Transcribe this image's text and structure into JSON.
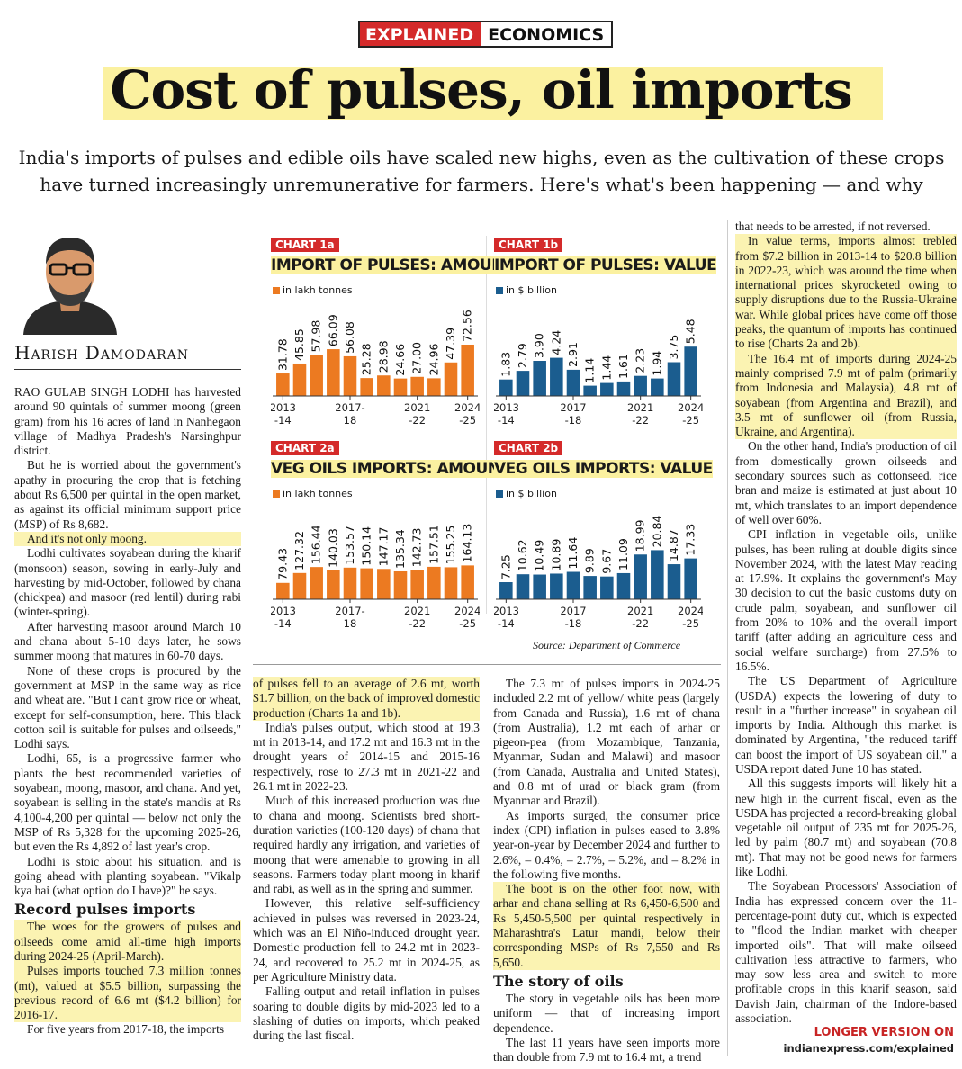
{
  "header": {
    "tag_explained": "EXPLAINED",
    "tag_section": "ECONOMICS",
    "headline": "Cost of pulses, oil imports",
    "standfirst": "India's imports of pulses and edible oils have scaled new highs, even as the cultivation of these crops have turned increasingly unremunerative for farmers. Here's what's been happening — and why"
  },
  "author": {
    "name": "Harish Damodaran",
    "avatar_icon": "author-portrait-icon"
  },
  "colors": {
    "accent_red": "#d42a2a",
    "orange_bar": "#ec7a21",
    "blue_bar": "#1b5d8f",
    "highlight": "#fbf1a0"
  },
  "col1": {
    "p1": "RAO GULAB SINGH LODHI has harvested around 90 quintals of summer moong (green gram) from his 16 acres of land in Nanhegaon village of Madhya Pradesh's Narsinghpur district.",
    "p2": "But he is worried about the government's apathy in procuring the crop that is fetching about Rs 6,500 per quintal in the open market, as against its official minimum support price (MSP) of Rs 8,682.",
    "p3": "And it's not only moong.",
    "p4": "Lodhi cultivates soyabean during the kharif (monsoon) season, sowing in early-July and harvesting by mid-October, followed by chana (chickpea) and masoor (red lentil) during rabi (winter-spring).",
    "p5": "After harvesting masoor around March 10 and chana about 5-10 days later, he sows summer moong that matures in 60-70 days.",
    "p6": "None of these crops is procured by the government at MSP in the same way as rice and wheat are. \"But I can't grow rice or wheat, except for self-consumption, here. This black cotton soil is suitable for pulses and oilseeds,\" Lodhi says.",
    "p7": "Lodhi, 65, is a progressive farmer who plants the best recommended varieties of soyabean, moong, masoor, and chana. And yet, soyabean is selling in the state's mandis at Rs 4,100-4,200 per quintal — below not only the MSP of Rs 5,328 for the upcoming 2025-26, but even the Rs 4,892 of last year's crop.",
    "p8": "Lodhi is stoic about his situation, and is going ahead with planting soyabean. \"Vikalp kya hai (what option do I have)?\" he says.",
    "h_record": "Record pulses imports",
    "p9": "The woes for the growers of pulses and oilseeds come amid all-time high imports during 2024-25 (April-March).",
    "p10": "Pulses imports touched 7.3 million tonnes (mt), valued at $5.5 billion, surpassing the previous record of 6.6 mt ($4.2 billion) for 2016-17.",
    "p11": "For five years from 2017-18, the imports"
  },
  "col2": {
    "p1": "of pulses fell to an average of 2.6 mt, worth $1.7 billion, on the back of improved domestic production (Charts 1a and 1b).",
    "p2": "India's pulses output, which stood at 19.3 mt in 2013-14, and 17.2 mt and 16.3 mt in the drought years of 2014-15 and 2015-16 respectively, rose to 27.3 mt in 2021-22 and 26.1 mt in 2022-23.",
    "p3": "Much of this increased production was due to chana and moong. Scientists bred short-duration varieties (100-120 days) of chana that required hardly any irrigation, and varieties of moong that were amenable to growing in all seasons. Farmers today plant moong in kharif and rabi, as well as in the spring and summer.",
    "p4": "However, this relative self-sufficiency achieved in pulses was reversed in 2023-24, which was an El Niño-induced drought year. Domestic production fell to 24.2 mt in 2023-24, and recovered to 25.2 mt in 2024-25, as per Agriculture Ministry data.",
    "p5": "Falling output and retail inflation in pulses soaring to double digits by mid-2023 led to a slashing of duties on imports, which peaked during the last fiscal."
  },
  "col3": {
    "p1": "The 7.3 mt of pulses imports in 2024-25 included 2.2 mt of yellow/ white peas (largely from Canada and Russia), 1.6 mt of chana (from Australia), 1.2 mt each of arhar or pigeon-pea (from Mozambique, Tanzania, Myanmar, Sudan and Malawi) and masoor (from Canada, Australia and United States), and 0.8 mt of urad or black gram (from Myanmar and Brazil).",
    "p2": "As imports surged, the consumer price index (CPI) inflation in pulses eased to 3.8% year-on-year by December 2024 and further to 2.6%, – 0.4%, – 2.7%, – 5.2%, and – 8.2% in the following five months.",
    "p3": "The boot is on the other foot now, with arhar and chana selling at Rs 6,450-6,500 and Rs 5,450-5,500 per quintal respectively in Maharashtra's Latur mandi, below their corresponding MSPs of Rs 7,550 and Rs 5,650.",
    "h_oils": "The story of oils",
    "p4": "The story in vegetable oils has been more uniform — that of increasing import dependence.",
    "p5": "The last 11 years have seen imports more than double from 7.9 mt to 16.4 mt, a trend"
  },
  "col4": {
    "p0": "that needs to be arrested, if not reversed.",
    "p1": "In value terms, imports almost trebled from $7.2 billion in 2013-14 to $20.8 billion in 2022-23, which was around the time when international prices skyrocketed owing to supply disruptions due to the Russia-Ukraine war. While global prices have come off those peaks, the quantum of imports has continued to rise (Charts 2a and 2b).",
    "p2": "The 16.4 mt of imports during 2024-25 mainly comprised 7.9 mt of palm (primarily from Indonesia and Malaysia), 4.8 mt of soyabean (from Argentina and Brazil), and 3.5 mt of sunflower oil (from Russia, Ukraine, and Argentina).",
    "p3": "On the other hand, India's production of oil from domestically grown oilseeds and secondary sources such as cottonseed, rice bran and maize is estimated at just about 10 mt, which translates to an import dependence of well over 60%.",
    "p4": "CPI inflation in vegetable oils, unlike pulses, has been ruling at double digits since November 2024, with the latest May reading at 17.9%. It explains the government's May 30 decision to cut the basic customs duty on crude palm, soyabean, and sunflower oil from 20% to 10% and the overall import tariff (after adding an agriculture cess and social welfare surcharge) from 27.5% to 16.5%.",
    "p5": "The US Department of Agriculture (USDA) expects the lowering of duty to result in a \"further increase\" in soyabean oil imports by India. Although this market is dominated by Argentina, \"the reduced tariff can boost the import of US soyabean oil,\" a USDA report dated June 10 has stated.",
    "p6": "All this suggests imports will likely hit a new high in the current fiscal, even as the USDA has projected a record-breaking global vegetable oil output of 235 mt for 2025-26, led by palm (80.7 mt) and soyabean (70.8 mt). That may not be good news for farmers like Lodhi.",
    "p7": "The Soyabean Processors' Association of India has expressed concern over the 11-percentage-point duty cut, which is expected to \"flood the Indian market with cheaper imported oils\". That will make oilseed cultivation less attractive to farmers, who may sow less area and switch to more profitable crops in this kharif season, said Davish Jain, chairman of the Indore-based association."
  },
  "chart_data": [
    {
      "type": "bar",
      "tag": "CHART 1a",
      "title": "IMPORT OF PULSES: AMOUNT",
      "legend": "in lakh tonnes",
      "color": "#ec7a21",
      "categories": [
        "2013-14",
        "2014-15",
        "2015-16",
        "2016-17",
        "2017-18",
        "2018-19",
        "2019-20",
        "2020-21",
        "2021-22",
        "2022-23",
        "2023-24",
        "2024-25"
      ],
      "values": [
        31.78,
        45.85,
        57.98,
        66.09,
        56.08,
        25.28,
        28.98,
        24.66,
        27.0,
        24.96,
        47.39,
        72.56
      ],
      "value_labels": [
        "31.78",
        "45.85",
        "57.98",
        "66.09",
        "56.08",
        "25.28",
        "28.98",
        "24.66",
        "27.00",
        "24.96",
        "47.39",
        "72.56"
      ],
      "tick_labels": [
        {
          "i": 0,
          "l1": "2013",
          "l2": "-14"
        },
        {
          "i": 4,
          "l1": "2017-",
          "l2": "18"
        },
        {
          "i": 8,
          "l1": "2021",
          "l2": "-22"
        },
        {
          "i": 11,
          "l1": "2024",
          "l2": "-25"
        }
      ],
      "ylim": [
        0,
        140
      ]
    },
    {
      "type": "bar",
      "tag": "CHART 1b",
      "title": "IMPORT OF PULSES: VALUE",
      "legend": "in $ billion",
      "color": "#1b5d8f",
      "categories": [
        "2013-14",
        "2014-15",
        "2015-16",
        "2016-17",
        "2017-18",
        "2018-19",
        "2019-20",
        "2020-21",
        "2021-22",
        "2022-23",
        "2023-24",
        "2024-25"
      ],
      "values": [
        1.83,
        2.79,
        3.9,
        4.24,
        2.91,
        1.14,
        1.44,
        1.61,
        2.23,
        1.94,
        3.75,
        5.48
      ],
      "value_labels": [
        "1.83",
        "2.79",
        "3.90",
        "4.24",
        "2.91",
        "1.14",
        "1.44",
        "1.61",
        "2.23",
        "1.94",
        "3.75",
        "5.48"
      ],
      "tick_labels": [
        {
          "i": 0,
          "l1": "2013",
          "l2": "-14"
        },
        {
          "i": 4,
          "l1": "2017",
          "l2": "-18"
        },
        {
          "i": 8,
          "l1": "2021",
          "l2": "-22"
        },
        {
          "i": 11,
          "l1": "2024",
          "l2": "-25"
        }
      ],
      "ylim": [
        0,
        11
      ]
    },
    {
      "type": "bar",
      "tag": "CHART 2a",
      "title": "VEG OILS IMPORTS: AMOUNT",
      "legend": "in lakh tonnes",
      "color": "#ec7a21",
      "categories": [
        "2013-14",
        "2014-15",
        "2015-16",
        "2016-17",
        "2017-18",
        "2018-19",
        "2019-20",
        "2020-21",
        "2021-22",
        "2022-23",
        "2023-24",
        "2024-25"
      ],
      "values": [
        79.43,
        127.32,
        156.44,
        140.03,
        153.57,
        150.14,
        147.17,
        135.34,
        142.73,
        157.51,
        155.25,
        164.13
      ],
      "value_labels": [
        "79.43",
        "127.32",
        "156.44",
        "140.03",
        "153.57",
        "150.14",
        "147.17",
        "135.34",
        "142.73",
        "157.51",
        "155.25",
        "164.13"
      ],
      "tick_labels": [
        {
          "i": 0,
          "l1": "2013",
          "l2": "-14"
        },
        {
          "i": 4,
          "l1": "2017-",
          "l2": "18"
        },
        {
          "i": 8,
          "l1": "2021",
          "l2": "-22"
        },
        {
          "i": 11,
          "l1": "2024",
          "l2": "-25"
        }
      ],
      "ylim": [
        0,
        480
      ]
    },
    {
      "type": "bar",
      "tag": "CHART 2b",
      "title": "VEG OILS IMPORTS: VALUE",
      "legend": "in $ billion",
      "color": "#1b5d8f",
      "categories": [
        "2013-14",
        "2014-15",
        "2015-16",
        "2016-17",
        "2017-18",
        "2018-19",
        "2019-20",
        "2020-21",
        "2021-22",
        "2022-23",
        "2023-24",
        "2024-25"
      ],
      "values": [
        7.25,
        10.62,
        10.49,
        10.89,
        11.64,
        9.89,
        9.67,
        11.09,
        18.99,
        20.84,
        14.87,
        17.33
      ],
      "value_labels": [
        "7.25",
        "10.62",
        "10.49",
        "10.89",
        "11.64",
        "9.89",
        "9.67",
        "11.09",
        "18.99",
        "20.84",
        "14.87",
        "17.33"
      ],
      "tick_labels": [
        {
          "i": 0,
          "l1": "2013",
          "l2": "-14"
        },
        {
          "i": 4,
          "l1": "2017",
          "l2": "-18"
        },
        {
          "i": 8,
          "l1": "2021",
          "l2": "-22"
        },
        {
          "i": 11,
          "l1": "2024",
          "l2": "-25"
        }
      ],
      "ylim": [
        0,
        42
      ]
    }
  ],
  "source": "Source: Department of Commerce",
  "footer": {
    "longer": "LONGER VERSION ON",
    "url": "indianexpress.com/explained"
  }
}
